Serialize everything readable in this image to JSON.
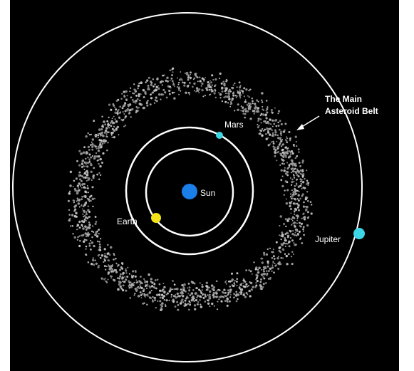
{
  "bodies": {
    "sun": "Sun",
    "earth": "Earth",
    "mars": "Mars",
    "jupiter": "Jupiter"
  },
  "belt_label": [
    "The Main",
    "Asteroid Belt"
  ]
}
